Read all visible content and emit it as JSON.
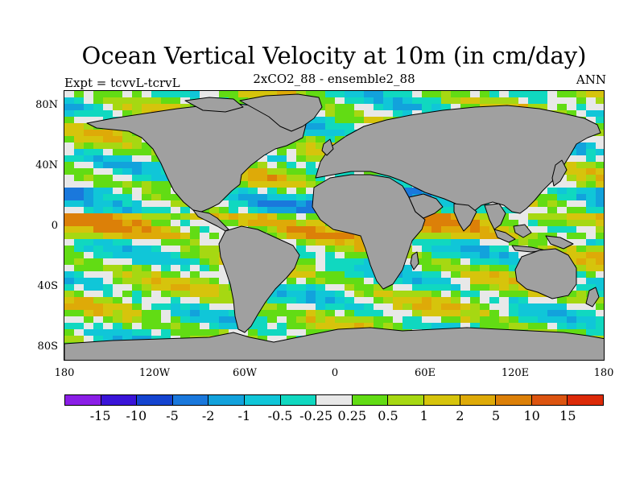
{
  "title": "Ocean Vertical Velocity at 10m (in cm/day)",
  "subtitle": "2xCO2_88 - ensemble2_88",
  "left_label": "Expt = tcvvL-tcrvL",
  "right_label": "ANN",
  "map": {
    "projection": "cylindrical-equidistant",
    "lon_range": [
      -180,
      180
    ],
    "lat_range": [
      -90,
      90
    ],
    "land_color": "#a0a0a0",
    "coastline_color": "#000000",
    "y_ticks": [
      "80N",
      "40N",
      "0",
      "40S",
      "80S"
    ],
    "x_ticks": [
      "180",
      "120W",
      "60W",
      "0",
      "60E",
      "120E",
      "180"
    ]
  },
  "colorbar": {
    "colors": [
      "#8a1ee6",
      "#3a14d8",
      "#1444d0",
      "#1a78dc",
      "#12a2dc",
      "#10c6d8",
      "#10d8c0",
      "#e8e8e8",
      "#62dc14",
      "#a6d812",
      "#d6c40c",
      "#deaa08",
      "#dc8008",
      "#dc5410",
      "#dc2a08"
    ],
    "labels": [
      "-15",
      "-10",
      "-5",
      "-2",
      "-1",
      "-0.5",
      "-0.25",
      "0.25",
      "0.5",
      "1",
      "2",
      "5",
      "10",
      "15"
    ]
  }
}
